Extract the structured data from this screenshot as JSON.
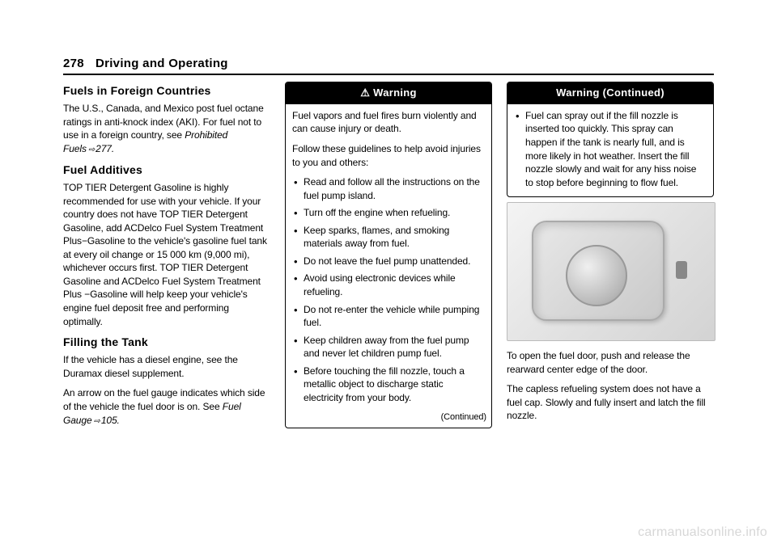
{
  "header": {
    "page_number": "278",
    "chapter_title": "Driving and Operating"
  },
  "col1": {
    "h_foreign": "Fuels in Foreign Countries",
    "p_foreign_1": "The U.S., Canada, and Mexico post fuel octane ratings in anti-knock index (AKI). For fuel not to use in a foreign country, see",
    "p_foreign_ref_label": "Prohibited Fuels",
    "p_foreign_ref_page": "277.",
    "h_additives": "Fuel Additives",
    "p_additives": "TOP TIER Detergent Gasoline is highly recommended for use with your vehicle. If your country does not have TOP TIER Detergent Gasoline, add ACDelco Fuel System Treatment Plus−Gasoline to the vehicle's gasoline fuel tank at every oil change or 15 000 km (9,000 mi), whichever occurs first. TOP TIER Detergent Gasoline and ACDelco Fuel System Treatment Plus −Gasoline will help keep your vehicle's engine fuel deposit free and performing optimally.",
    "h_filling": "Filling the Tank",
    "p_filling_1": "If the vehicle has a diesel engine, see the Duramax diesel supplement.",
    "p_filling_2": "An arrow on the fuel gauge indicates which side of the vehicle the fuel door is on. See",
    "p_filling_ref_label": "Fuel Gauge",
    "p_filling_ref_page": "105."
  },
  "col2": {
    "warn_title": "Warning",
    "warn_intro": "Fuel vapors and fuel fires burn violently and can cause injury or death.",
    "warn_follow": "Follow these guidelines to help avoid injuries to you and others:",
    "bullets": [
      "Read and follow all the instructions on the fuel pump island.",
      "Turn off the engine when refueling.",
      "Keep sparks, flames, and smoking materials away from fuel.",
      "Do not leave the fuel pump unattended.",
      "Avoid using electronic devices while refueling.",
      "Do not re-enter the vehicle while pumping fuel.",
      "Keep children away from the fuel pump and never let children pump fuel.",
      "Before touching the fill nozzle, touch a metallic object to discharge static electricity from your body."
    ],
    "continued": "(Continued)"
  },
  "col3": {
    "warn_cont_title": "Warning (Continued)",
    "cont_bullets": [
      "Fuel can spray out if the fill nozzle is inserted too quickly. This spray can happen if the tank is nearly full, and is more likely in hot weather. Insert the fill nozzle slowly and wait for any hiss noise to stop before beginning to flow fuel."
    ],
    "p_open": "To open the fuel door, push and release the rearward center edge of the door.",
    "p_capless": "The capless refueling system does not have a fuel cap. Slowly and fully insert and latch the fill nozzle."
  },
  "watermark": "carmanualsonline.info"
}
